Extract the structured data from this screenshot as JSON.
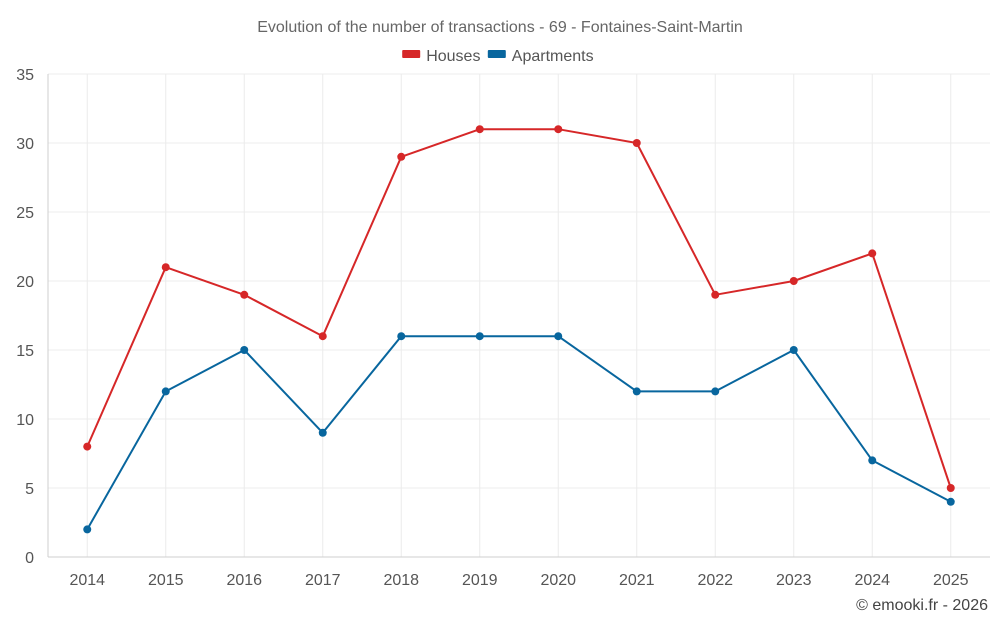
{
  "chart_data": {
    "type": "line",
    "title": "Evolution of the number of transactions - 69 - Fontaines-Saint-Martin",
    "xlabel": "",
    "ylabel": "",
    "x": [
      "2014",
      "2015",
      "2016",
      "2017",
      "2018",
      "2019",
      "2020",
      "2021",
      "2022",
      "2023",
      "2024",
      "2025"
    ],
    "ylim": [
      0,
      35
    ],
    "yticks": [
      0,
      5,
      10,
      15,
      20,
      25,
      30,
      35
    ],
    "grid": true,
    "legend_position": "top-center",
    "series": [
      {
        "name": "Houses",
        "color": "#d62728",
        "values": [
          8,
          21,
          19,
          16,
          29,
          31,
          31,
          30,
          19,
          20,
          22,
          5
        ]
      },
      {
        "name": "Apartments",
        "color": "#08669e",
        "values": [
          2,
          12,
          15,
          9,
          16,
          16,
          16,
          12,
          12,
          15,
          7,
          4
        ]
      }
    ]
  },
  "credit": "© emooki.fr - 2026"
}
